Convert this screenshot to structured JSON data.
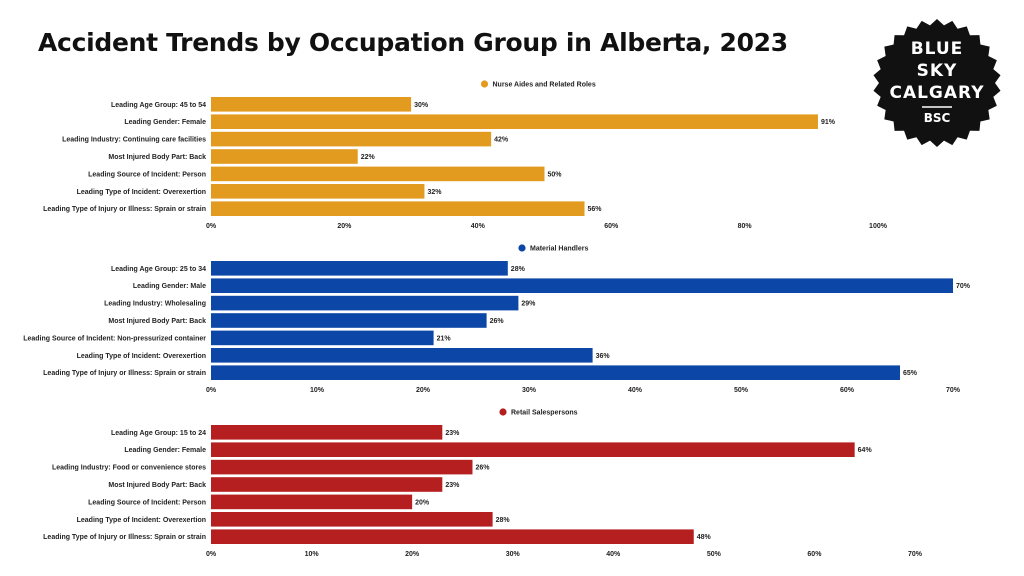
{
  "title": "Accident Trends by Occupation Group in Alberta, 2023",
  "logo": {
    "lines": [
      "BLUE",
      "SKY",
      "CALGARY"
    ],
    "abbr": "BSC",
    "color": "#111111"
  },
  "chart_data": [
    {
      "type": "bar",
      "orientation": "horizontal",
      "series_name": "Nurse Aides and Related Roles",
      "color": "#E29B1F",
      "categories": [
        "Leading Age Group: 45 to 54",
        "Leading Gender: Female",
        "Leading Industry: Continuing care facilities",
        "Most Injured Body Part: Back",
        "Leading Source of Incident: Person",
        "Leading Type of Incident: Overexertion",
        "Leading Type of Injury or Illness: Sprain or strain"
      ],
      "values": [
        30,
        91,
        42,
        22,
        50,
        32,
        56
      ],
      "value_labels": [
        "30%",
        "91%",
        "42%",
        "22%",
        "50%",
        "32%",
        "56%"
      ],
      "xlim": [
        0,
        110
      ],
      "ticks": [
        0,
        20,
        40,
        60,
        80,
        100
      ],
      "tick_labels": [
        "0%",
        "20%",
        "40%",
        "60%",
        "80%",
        "100%"
      ],
      "legend": "top-center",
      "grid": false
    },
    {
      "type": "bar",
      "orientation": "horizontal",
      "series_name": "Material Handlers",
      "color": "#0C47A8",
      "categories": [
        "Leading Age Group: 25 to 34",
        "Leading Gender: Male",
        "Leading Industry: Wholesaling",
        "Most Injured Body Part: Back",
        "Leading Source of Incident: Non-pressurized container",
        "Leading Type of Incident: Overexertion",
        "Leading Type of Injury or Illness: Sprain or strain"
      ],
      "values": [
        28,
        70,
        29,
        26,
        21,
        36,
        65
      ],
      "value_labels": [
        "28%",
        "70%",
        "29%",
        "26%",
        "21%",
        "36%",
        "65%"
      ],
      "xlim": [
        0,
        70
      ],
      "ticks": [
        0,
        10,
        20,
        30,
        40,
        50,
        60,
        70
      ],
      "tick_labels": [
        "0%",
        "10%",
        "20%",
        "30%",
        "40%",
        "50%",
        "60%",
        "70%"
      ],
      "legend": "top-center",
      "grid": false
    },
    {
      "type": "bar",
      "orientation": "horizontal",
      "series_name": "Retail Salespersons",
      "color": "#B51F1F",
      "categories": [
        "Leading Age Group: 15 to 24",
        "Leading Gender: Female",
        "Leading Industry: Food or convenience stores",
        "Most Injured Body Part: Back",
        "Leading Source of Incident: Person",
        "Leading Type of Incident: Overexertion",
        "Leading Type of Injury or Illness: Sprain or strain"
      ],
      "values": [
        23,
        64,
        26,
        23,
        20,
        28,
        48
      ],
      "value_labels": [
        "23%",
        "64%",
        "26%",
        "23%",
        "20%",
        "28%",
        "48%"
      ],
      "xlim": [
        0,
        70
      ],
      "ticks": [
        0,
        10,
        20,
        30,
        40,
        50,
        60,
        70
      ],
      "tick_labels": [
        "0%",
        "10%",
        "20%",
        "30%",
        "40%",
        "50%",
        "60%",
        "70%"
      ],
      "legend": "top-center",
      "grid": false
    }
  ]
}
